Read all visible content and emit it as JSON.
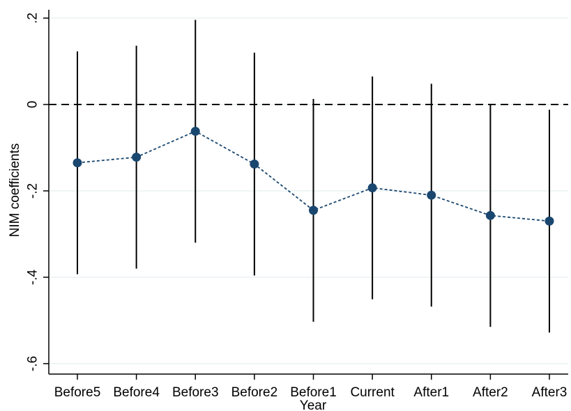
{
  "chart_data": {
    "type": "scatter",
    "title": "",
    "xlabel": "Year",
    "ylabel": "NIM coefficients",
    "categories": [
      "Before5",
      "Before4",
      "Before3",
      "Before2",
      "Before1",
      "Current",
      "After1",
      "After2",
      "After3"
    ],
    "y_ticks": [
      0.2,
      0,
      -0.2,
      -0.4,
      -0.6
    ],
    "y_tick_labels": [
      ".2",
      "0",
      "-.2",
      "-.4",
      "-.6"
    ],
    "ylim": [
      -0.62,
      0.21
    ],
    "reference_line": 0,
    "grid": true,
    "series": [
      {
        "coefficients": [
          -0.135,
          -0.122,
          -0.062,
          -0.138,
          -0.245,
          -0.193,
          -0.21,
          -0.257,
          -0.27
        ],
        "ci_lower": [
          -0.393,
          -0.38,
          -0.32,
          -0.396,
          -0.503,
          -0.451,
          -0.468,
          -0.515,
          -0.528
        ],
        "ci_upper": [
          0.123,
          0.136,
          0.196,
          0.12,
          0.013,
          0.065,
          0.048,
          0.001,
          -0.012
        ]
      }
    ],
    "colors": {
      "marker": "#1a476f",
      "connector": "#1a476f",
      "ci": "#000000",
      "reference": "#000000",
      "grid": "#eaf2f3",
      "axis": "#000000"
    }
  }
}
